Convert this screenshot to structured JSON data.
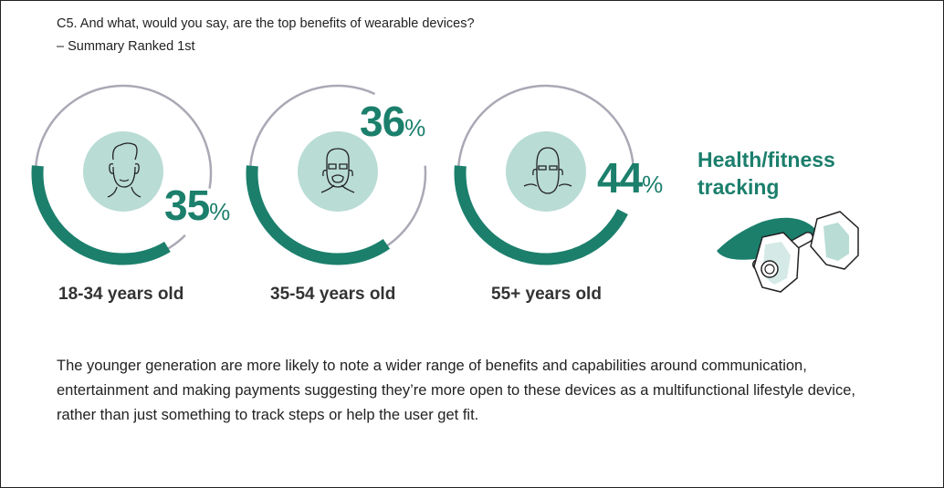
{
  "question": {
    "line1": "C5. And what, would you say, are the top benefits of wearable devices?",
    "line2": "– Summary Ranked 1st"
  },
  "groups": [
    {
      "label": "18-34 years old",
      "value": "35",
      "percent": 35,
      "icon": "young-man-face-icon"
    },
    {
      "label": "35-54 years old",
      "value": "36",
      "percent": 36,
      "icon": "bearded-man-glasses-face-icon"
    },
    {
      "label": "55+ years old",
      "value": "44",
      "percent": 44,
      "icon": "older-man-glasses-beard-face-icon"
    }
  ],
  "percent_symbol": "%",
  "benefit": {
    "line1": "Health/fitness",
    "line2": "tracking",
    "icon": "dumbbell-icon"
  },
  "summary": "The younger generation are more likely to note a wider range of benefits and capabilities around communication, entertainment and making payments suggesting they’re more open to these devices as a multifunctional lifestyle device, rather than just something to track steps or help the user get fit.",
  "colors": {
    "accent": "#1b7f6c",
    "ring": "#a9a9b6",
    "face_bg": "#b9dcd5",
    "text": "#333333"
  }
}
